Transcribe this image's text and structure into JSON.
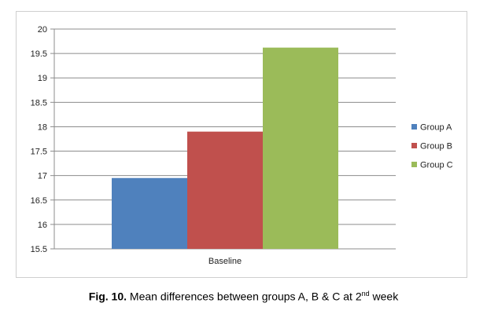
{
  "caption": {
    "label": "Fig. 10.",
    "text_before_sup": " Mean differences between groups A, B & C at 2",
    "sup": "nd",
    "text_after_sup": " week"
  },
  "chart_data": {
    "type": "bar",
    "categories": [
      "Baseline"
    ],
    "series": [
      {
        "name": "Group A",
        "values": [
          16.95
        ],
        "color": "#4f81bd"
      },
      {
        "name": "Group B",
        "values": [
          17.9
        ],
        "color": "#c0504d"
      },
      {
        "name": "Group C",
        "values": [
          19.62
        ],
        "color": "#9bbb59"
      }
    ],
    "ylim": [
      15.5,
      20
    ],
    "yticks": [
      "20",
      "19.5",
      "19",
      "18.5",
      "18",
      "17.5",
      "17",
      "16.5",
      "16",
      "15.5"
    ],
    "grid": true,
    "legend": "right"
  }
}
